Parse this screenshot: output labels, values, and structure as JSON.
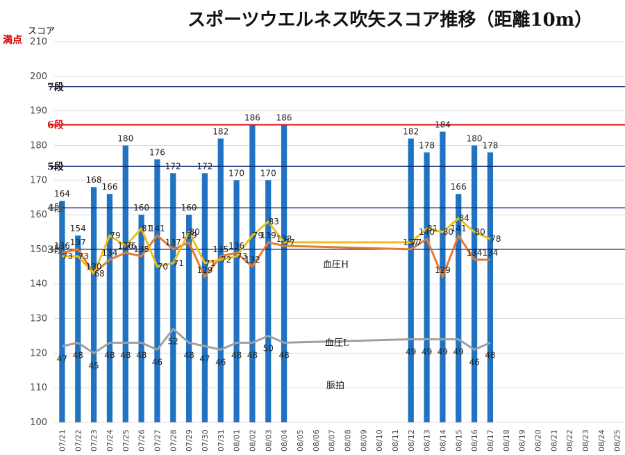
{
  "chart_data": {
    "type": "bar",
    "title": "スポーツウエルネス吹矢スコア推移（距離10m）",
    "ylabel": "スコア",
    "full_score_label": "満点",
    "ylim": [
      100,
      210
    ],
    "yticks": [
      100,
      110,
      120,
      130,
      140,
      150,
      160,
      170,
      180,
      190,
      200,
      210
    ],
    "categories": [
      "07/21",
      "07/22",
      "07/23",
      "07/24",
      "07/25",
      "07/26",
      "07/27",
      "07/28",
      "07/29",
      "07/30",
      "07/31",
      "08/01",
      "08/02",
      "08/03",
      "08/04",
      "08/05",
      "08/06",
      "08/07",
      "08/08",
      "08/09",
      "08/10",
      "08/11",
      "08/12",
      "08/13",
      "08/14",
      "08/15",
      "08/16",
      "08/17",
      "08/18",
      "08/19",
      "08/20",
      "08/21",
      "08/22",
      "08/23",
      "08/24",
      "08/25"
    ],
    "series": [
      {
        "name": "スコア",
        "kind": "bar",
        "color": "#1f73c2",
        "values": [
          164,
          154,
          168,
          166,
          180,
          160,
          176,
          172,
          160,
          172,
          182,
          170,
          186,
          170,
          186,
          null,
          null,
          null,
          null,
          null,
          null,
          null,
          182,
          178,
          184,
          166,
          180,
          178,
          null,
          null,
          null,
          null,
          null,
          null,
          null,
          null
        ],
        "labels": [
          "164",
          "154",
          "168",
          "166",
          "180",
          "160",
          "176",
          "172",
          "160",
          "172",
          "182",
          "170",
          "186",
          "170",
          "186",
          "",
          "",
          "",
          "",
          "",
          "",
          "",
          "182",
          "178",
          "184",
          "166",
          "180",
          "178",
          "",
          "",
          "",
          "",
          "",
          "",
          "",
          ""
        ]
      },
      {
        "name": "血圧H",
        "kind": "line",
        "color": "#e87a2e",
        "values": [
          136,
          137,
          130,
          134,
          136,
          135,
          141,
          137,
          139,
          129,
          135,
          136,
          132,
          139,
          138,
          null,
          null,
          null,
          null,
          null,
          null,
          null,
          137,
          140,
          129,
          141,
          134,
          134,
          null,
          null,
          null,
          null,
          null,
          null,
          null,
          null
        ]
      },
      {
        "name": "血圧L",
        "kind": "line",
        "color": "#f2be16",
        "values": [
          73,
          73,
          68,
          79,
          76,
          81,
          70,
          71,
          80,
          71,
          72,
          73,
          79,
          83,
          77,
          null,
          null,
          null,
          null,
          null,
          null,
          null,
          77,
          81,
          80,
          84,
          80,
          78,
          null,
          null,
          null,
          null,
          null,
          null,
          null,
          null
        ],
        "labels": [
          "73",
          "73",
          "68",
          "79",
          "76",
          "81",
          "70",
          "71",
          "80",
          "71",
          "72",
          "73",
          "79",
          "83",
          "77",
          "",
          "",
          "",
          "",
          "",
          "",
          "",
          "77",
          "81",
          "80",
          "84",
          "80",
          "78",
          "",
          "",
          "",
          "",
          "",
          "",
          "",
          ""
        ]
      },
      {
        "name": "脈拍",
        "kind": "line",
        "color": "#a0a0a0",
        "values": [
          47,
          48,
          45,
          48,
          48,
          48,
          46,
          52,
          48,
          47,
          46,
          48,
          48,
          50,
          48,
          null,
          null,
          null,
          null,
          null,
          null,
          null,
          49,
          49,
          49,
          49,
          46,
          48,
          null,
          null,
          null,
          null,
          null,
          null,
          null,
          null
        ]
      }
    ],
    "reference_lines": [
      {
        "label": "7段",
        "value": 197,
        "color": "#0a1f6e",
        "label_color": "#111"
      },
      {
        "label": "6段",
        "value": 186,
        "color": "#e01818",
        "label_color": "#e01818"
      },
      {
        "label": "5段",
        "value": 174,
        "color": "#0a1f6e",
        "label_color": "#111"
      },
      {
        "label": "4段",
        "value": 162,
        "color": "#0a1f6e",
        "label_color": "#555"
      },
      {
        "label": "3段",
        "value": 150,
        "color": "#0a1f6e",
        "label_color": "#555"
      }
    ],
    "grid": true
  }
}
